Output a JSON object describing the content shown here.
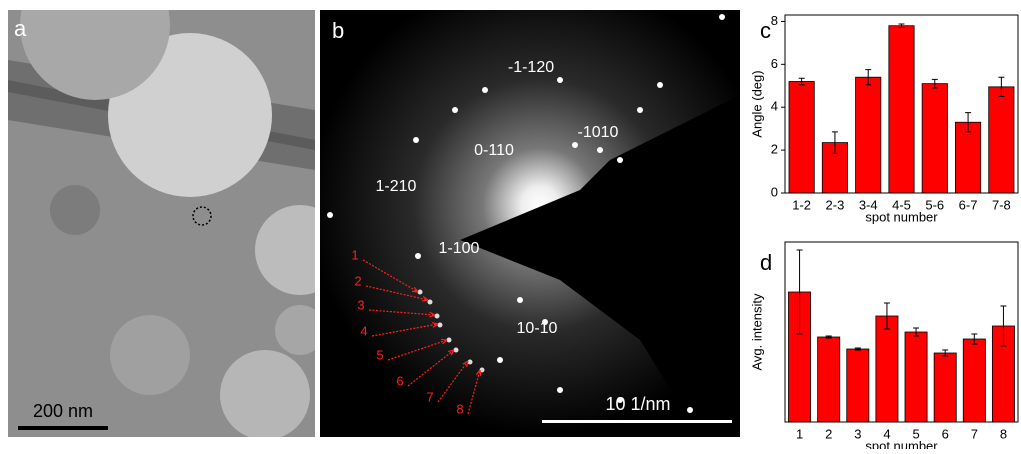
{
  "figure": {
    "panel_a": {
      "label": "a",
      "scale_bar": "200 nm"
    },
    "panel_b": {
      "label": "b",
      "scale_bar": "10 1/nm",
      "reflections": [
        "-1-120",
        "-1010",
        "0-110",
        "1-210",
        "1-100",
        "10-10"
      ],
      "spots": [
        "1",
        "2",
        "3",
        "4",
        "5",
        "6",
        "7",
        "8"
      ]
    },
    "panel_c_label": "c",
    "panel_d_label": "d"
  },
  "chart_data": [
    {
      "type": "bar",
      "ylabel": "Angle (deg)",
      "xlabel": "spot number",
      "categories": [
        "1-2",
        "2-3",
        "3-4",
        "4-5",
        "5-6",
        "6-7",
        "7-8"
      ],
      "values": [
        5.2,
        2.35,
        5.4,
        7.8,
        5.1,
        3.3,
        4.95
      ],
      "errors": [
        0.15,
        0.5,
        0.35,
        0.08,
        0.2,
        0.45,
        0.45
      ],
      "color": "#ff0000",
      "ylim": [
        0,
        8.3
      ],
      "yticks": [
        0,
        2,
        4,
        6,
        8
      ]
    },
    {
      "type": "bar",
      "ylabel": "Avg. intensity",
      "xlabel": "spot number",
      "categories": [
        "1",
        "2",
        "3",
        "4",
        "5",
        "6",
        "7",
        "8"
      ],
      "values": [
        130,
        85,
        73,
        106,
        90,
        69,
        83,
        96
      ],
      "errors": [
        42,
        1,
        1,
        13,
        4,
        3,
        5,
        20
      ],
      "color": "#ff0000",
      "ylim": [
        0,
        180
      ]
    }
  ]
}
